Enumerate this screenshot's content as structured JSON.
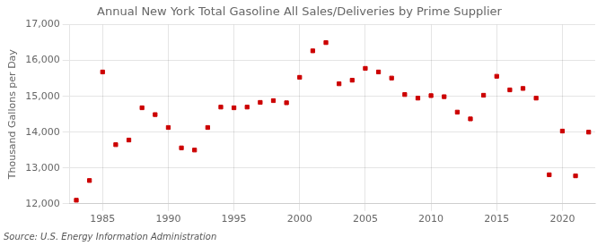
{
  "chart_data": {
    "type": "scatter",
    "title": "Annual New York Total Gasoline All Sales/Deliveries by Prime Supplier",
    "ylabel": "Thousand Gallons per Day",
    "source": "Source: U.S. Energy Information Administration",
    "x": [
      1983,
      1984,
      1985,
      1986,
      1987,
      1988,
      1989,
      1990,
      1991,
      1992,
      1993,
      1994,
      1995,
      1996,
      1997,
      1998,
      1999,
      2000,
      2001,
      2002,
      2003,
      2004,
      2005,
      2006,
      2007,
      2008,
      2009,
      2010,
      2011,
      2012,
      2013,
      2014,
      2015,
      2016,
      2017,
      2018,
      2019,
      2020,
      2021,
      2022
    ],
    "values": [
      12100,
      12650,
      15680,
      13650,
      13780,
      14680,
      14490,
      14130,
      13560,
      13500,
      14130,
      14700,
      14680,
      14700,
      14830,
      14880,
      14820,
      15530,
      16270,
      16500,
      15350,
      15450,
      15780,
      15680,
      15510,
      15050,
      14950,
      15020,
      14990,
      14560,
      14370,
      15030,
      15560,
      15180,
      15220,
      14950,
      12810,
      14030,
      12780,
      14000
    ],
    "color": "#cc0000",
    "marker": "square",
    "xlim": [
      1982.5,
      2022.5
    ],
    "xticks": [
      1985,
      1990,
      1995,
      2000,
      2005,
      2010,
      2015,
      2020
    ],
    "ylim": [
      12000,
      17000
    ],
    "yticks": [
      {
        "value": 12000,
        "label": "12,000"
      },
      {
        "value": 13000,
        "label": "13,000"
      },
      {
        "value": 14000,
        "label": "14,000"
      },
      {
        "value": 15000,
        "label": "15,000"
      },
      {
        "value": 16000,
        "label": "16,000"
      },
      {
        "value": 17000,
        "label": "17,000"
      }
    ],
    "grid": true
  }
}
